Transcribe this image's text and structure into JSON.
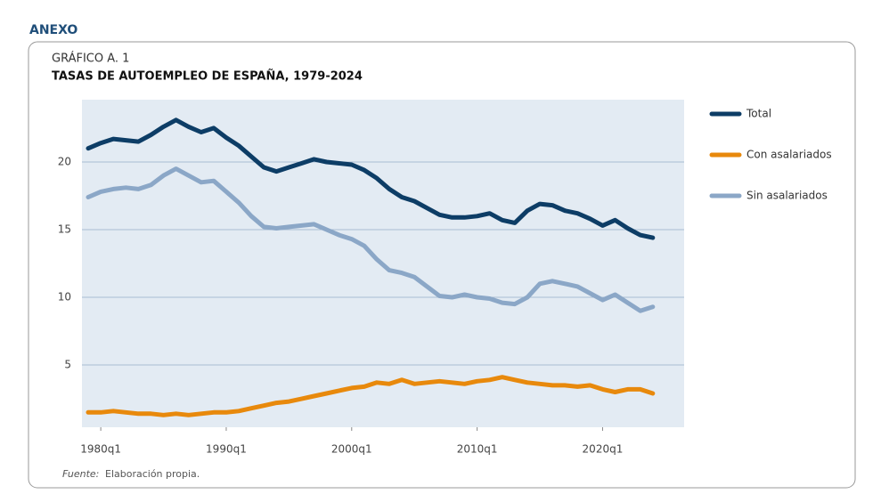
{
  "header": "ANEXO",
  "chart_data": {
    "type": "line",
    "label": "GRÁFICO A. 1",
    "title": "TASAS DE AUTOEMPLEO DE ESPAÑA, 1979-2024",
    "x": [
      1979,
      1980,
      1981,
      1982,
      1983,
      1984,
      1985,
      1986,
      1987,
      1988,
      1989,
      1990,
      1991,
      1992,
      1993,
      1994,
      1995,
      1996,
      1997,
      1998,
      1999,
      2000,
      2001,
      2002,
      2003,
      2004,
      2005,
      2006,
      2007,
      2008,
      2009,
      2010,
      2011,
      2012,
      2013,
      2014,
      2015,
      2016,
      2017,
      2018,
      2019,
      2020,
      2021,
      2022,
      2023,
      2024
    ],
    "series": [
      {
        "name": "Total",
        "color": "#0d3d66",
        "values": [
          21.0,
          21.4,
          21.7,
          21.6,
          21.5,
          22.0,
          22.6,
          23.1,
          22.6,
          22.2,
          22.5,
          21.8,
          21.2,
          20.4,
          19.6,
          19.3,
          19.6,
          19.9,
          20.2,
          20.0,
          19.9,
          19.8,
          19.4,
          18.8,
          18.0,
          17.4,
          17.1,
          16.6,
          16.1,
          15.9,
          15.9,
          16.0,
          16.2,
          15.7,
          15.5,
          16.4,
          16.9,
          16.8,
          16.4,
          16.2,
          15.8,
          15.3,
          15.7,
          15.1,
          14.6,
          14.4
        ]
      },
      {
        "name": "Con asalariados",
        "color": "#e8890c",
        "values": [
          1.5,
          1.5,
          1.6,
          1.5,
          1.4,
          1.4,
          1.3,
          1.4,
          1.3,
          1.4,
          1.5,
          1.5,
          1.6,
          1.8,
          2.0,
          2.2,
          2.3,
          2.5,
          2.7,
          2.9,
          3.1,
          3.3,
          3.4,
          3.7,
          3.6,
          3.9,
          3.6,
          3.7,
          3.8,
          3.7,
          3.6,
          3.8,
          3.9,
          4.1,
          3.9,
          3.7,
          3.6,
          3.5,
          3.5,
          3.4,
          3.5,
          3.2,
          3.0,
          3.2,
          3.2,
          2.9
        ]
      },
      {
        "name": "Sin asalariados",
        "color": "#8ba7c7",
        "values": [
          17.4,
          17.8,
          18.0,
          18.1,
          18.0,
          18.3,
          19.0,
          19.5,
          19.0,
          18.5,
          18.6,
          17.8,
          17.0,
          16.0,
          15.2,
          15.1,
          15.2,
          15.3,
          15.4,
          15.0,
          14.6,
          14.3,
          13.8,
          12.8,
          12.0,
          11.8,
          11.5,
          10.8,
          10.1,
          10.0,
          10.2,
          10.0,
          9.9,
          9.6,
          9.5,
          10.0,
          11.0,
          11.2,
          11.0,
          10.8,
          10.3,
          9.8,
          10.2,
          9.6,
          9.0,
          9.3
        ]
      }
    ],
    "xlim": [
      1978.5,
      2026.5
    ],
    "xticks": [
      {
        "value": 1980,
        "label": "1980q1"
      },
      {
        "value": 1990,
        "label": "1990q1"
      },
      {
        "value": 2000,
        "label": "2000q1"
      },
      {
        "value": 2010,
        "label": "2010q1"
      },
      {
        "value": 2020,
        "label": "2020q1"
      }
    ],
    "ylim": [
      0.4,
      24.6
    ],
    "yticks": [
      5,
      10,
      15,
      20
    ],
    "grid": true,
    "legend": "right",
    "source_label": "Fuente:",
    "source_text": "Elaboración propia."
  }
}
